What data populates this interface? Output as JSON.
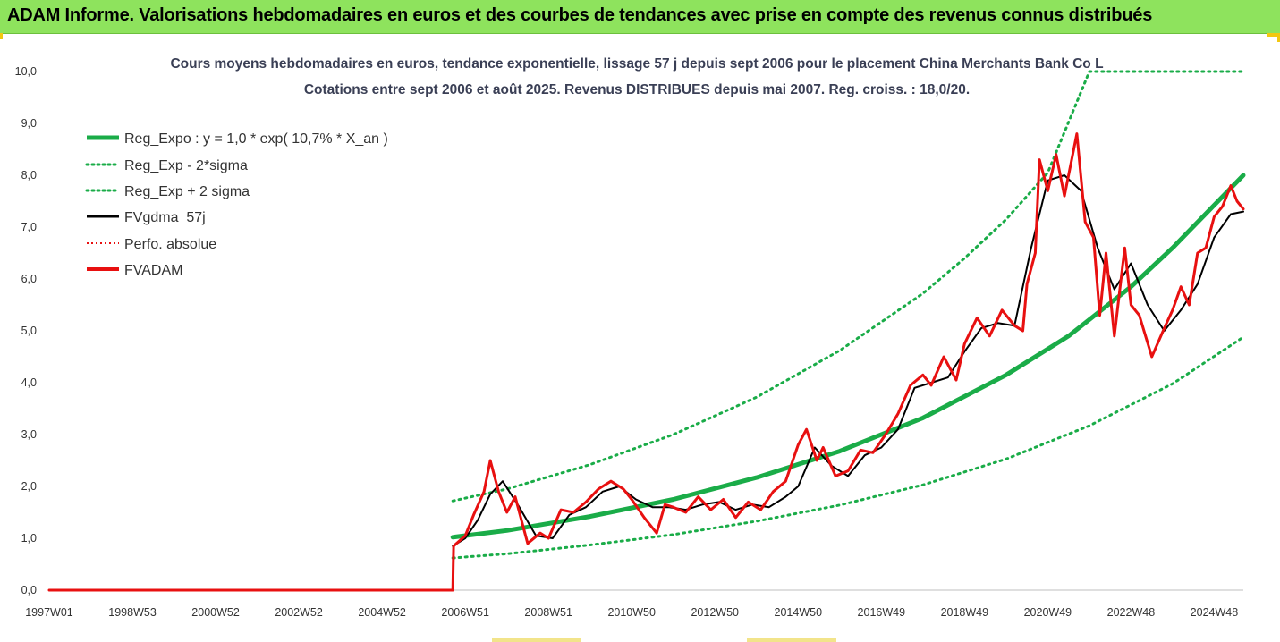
{
  "banner": {
    "title": "ADAM Informe. Valorisations hebdomadaires en euros et des courbes de tendances avec prise en compte des revenus connus distribués"
  },
  "colors": {
    "banner_bg": "#8ee35d",
    "reg_expo": "#1aac48",
    "reg_band": "#1aac48",
    "fvgdma": "#000000",
    "perfo": "#e81010",
    "fvadam": "#e81010",
    "axis": "#bfbfbf",
    "corner_accent": "#f2c811"
  },
  "chart_data": {
    "type": "line",
    "title": "Cours moyens hebdomadaires en euros, tendance exponentielle, lissage 57 j depuis sept 2006 pour le placement China Merchants Bank Co L",
    "subtitle": "Cotations entre sept 2006 et août 2025. Revenus DISTRIBUES depuis mai 2007. Reg. croiss. : 18,0/20.",
    "xlabel": "",
    "ylabel": "",
    "x_range": [
      1997.0,
      2025.7
    ],
    "ylim": [
      0,
      10
    ],
    "y_ticks": [
      "0,0",
      "1,0",
      "2,0",
      "3,0",
      "4,0",
      "5,0",
      "6,0",
      "7,0",
      "8,0",
      "9,0",
      "10,0"
    ],
    "x_ticks": [
      {
        "label": "1997W01",
        "x": 1997.0
      },
      {
        "label": "1998W53",
        "x": 1999.0
      },
      {
        "label": "2000W52",
        "x": 2001.0
      },
      {
        "label": "2002W52",
        "x": 2003.0
      },
      {
        "label": "2004W52",
        "x": 2005.0
      },
      {
        "label": "2006W51",
        "x": 2007.0
      },
      {
        "label": "2008W51",
        "x": 2009.0
      },
      {
        "label": "2010W50",
        "x": 2011.0
      },
      {
        "label": "2012W50",
        "x": 2013.0
      },
      {
        "label": "2014W50",
        "x": 2015.0
      },
      {
        "label": "2016W49",
        "x": 2017.0
      },
      {
        "label": "2018W49",
        "x": 2019.0
      },
      {
        "label": "2020W49",
        "x": 2021.0
      },
      {
        "label": "2022W48",
        "x": 2023.0
      },
      {
        "label": "2024W48",
        "x": 2025.0
      }
    ],
    "legend_position": "top-left",
    "grid": false,
    "series": [
      {
        "name": "Reg_Expo : y = 1,0 * exp( 10,7% *  X_an )",
        "style": "solid-thick",
        "x": [
          2006.7,
          2008.0,
          2010.0,
          2012.0,
          2014.0,
          2016.0,
          2018.0,
          2020.0,
          2021.5,
          2023.0,
          2024.0,
          2025.7
        ],
        "y": [
          1.02,
          1.15,
          1.42,
          1.75,
          2.17,
          2.68,
          3.32,
          4.15,
          4.9,
          5.85,
          6.6,
          8.0
        ]
      },
      {
        "name": "Reg_Exp - 2*sigma",
        "style": "dotted",
        "x": [
          2006.7,
          2008.0,
          2010.0,
          2012.0,
          2014.0,
          2016.0,
          2018.0,
          2020.0,
          2022.0,
          2024.0,
          2025.7
        ],
        "y": [
          0.62,
          0.7,
          0.87,
          1.07,
          1.33,
          1.64,
          2.03,
          2.53,
          3.17,
          3.98,
          4.88
        ]
      },
      {
        "name": "Reg_Exp + 2 sigma",
        "style": "dotted",
        "x": [
          2006.7,
          2008.0,
          2010.0,
          2012.0,
          2014.0,
          2016.0,
          2018.0,
          2019.0,
          2020.0,
          2021.0,
          2022.0,
          2025.7
        ],
        "y": [
          1.72,
          1.95,
          2.42,
          3.0,
          3.72,
          4.62,
          5.72,
          6.4,
          7.15,
          8.05,
          10.0,
          10.0
        ]
      },
      {
        "name": "FVgdma_57j",
        "style": "solid-black",
        "x": [
          2006.7,
          2007.0,
          2007.3,
          2007.6,
          2007.9,
          2008.3,
          2008.7,
          2009.1,
          2009.5,
          2009.9,
          2010.3,
          2010.7,
          2011.1,
          2011.5,
          2011.9,
          2012.3,
          2012.7,
          2013.1,
          2013.5,
          2013.9,
          2014.3,
          2014.7,
          2015.0,
          2015.4,
          2015.8,
          2016.2,
          2016.6,
          2017.0,
          2017.4,
          2017.8,
          2018.2,
          2018.6,
          2019.0,
          2019.4,
          2019.8,
          2020.2,
          2020.6,
          2021.0,
          2021.4,
          2021.8,
          2022.2,
          2022.6,
          2023.0,
          2023.4,
          2023.8,
          2024.2,
          2024.6,
          2025.0,
          2025.4,
          2025.7
        ],
        "y": [
          0.85,
          1.0,
          1.35,
          1.85,
          2.1,
          1.6,
          1.05,
          1.0,
          1.45,
          1.6,
          1.9,
          2.0,
          1.75,
          1.6,
          1.6,
          1.55,
          1.65,
          1.7,
          1.55,
          1.65,
          1.6,
          1.8,
          2.0,
          2.75,
          2.4,
          2.2,
          2.6,
          2.75,
          3.1,
          3.9,
          4.0,
          4.1,
          4.6,
          5.05,
          5.15,
          5.1,
          6.6,
          7.9,
          8.0,
          7.7,
          6.6,
          5.8,
          6.3,
          5.5,
          5.0,
          5.4,
          5.9,
          6.8,
          7.25,
          7.3
        ]
      },
      {
        "name": "Perfo. absolue",
        "style": "dotted-red",
        "x": [
          1997.0,
          2006.7
        ],
        "y": [
          0.0,
          0.0
        ]
      },
      {
        "name": "FVADAM",
        "style": "solid-red",
        "x": [
          1997.0,
          2006.7,
          2006.72,
          2007.0,
          2007.2,
          2007.45,
          2007.6,
          2007.8,
          2008.0,
          2008.2,
          2008.5,
          2008.8,
          2009.0,
          2009.3,
          2009.6,
          2009.9,
          2010.2,
          2010.5,
          2010.8,
          2011.0,
          2011.3,
          2011.6,
          2011.8,
          2012.0,
          2012.3,
          2012.6,
          2012.9,
          2013.2,
          2013.5,
          2013.8,
          2014.1,
          2014.4,
          2014.7,
          2015.0,
          2015.2,
          2015.45,
          2015.6,
          2015.9,
          2016.2,
          2016.5,
          2016.8,
          2017.1,
          2017.4,
          2017.7,
          2018.0,
          2018.2,
          2018.5,
          2018.8,
          2019.0,
          2019.3,
          2019.6,
          2019.9,
          2020.2,
          2020.4,
          2020.5,
          2020.7,
          2020.8,
          2021.0,
          2021.2,
          2021.4,
          2021.7,
          2021.9,
          2022.1,
          2022.25,
          2022.4,
          2022.6,
          2022.85,
          2023.0,
          2023.2,
          2023.5,
          2023.8,
          2024.0,
          2024.2,
          2024.4,
          2024.6,
          2024.8,
          2025.0,
          2025.2,
          2025.4,
          2025.55,
          2025.7
        ],
        "y": [
          0.0,
          0.0,
          0.85,
          1.05,
          1.45,
          1.9,
          2.5,
          1.9,
          1.5,
          1.8,
          0.9,
          1.1,
          1.0,
          1.55,
          1.5,
          1.7,
          1.95,
          2.1,
          1.95,
          1.75,
          1.4,
          1.1,
          1.65,
          1.6,
          1.5,
          1.8,
          1.55,
          1.75,
          1.4,
          1.7,
          1.55,
          1.9,
          2.1,
          2.8,
          3.1,
          2.5,
          2.75,
          2.2,
          2.3,
          2.7,
          2.65,
          3.0,
          3.4,
          3.95,
          4.15,
          3.95,
          4.5,
          4.05,
          4.75,
          5.25,
          4.9,
          5.4,
          5.1,
          5.0,
          5.9,
          6.5,
          8.3,
          7.7,
          8.4,
          7.6,
          8.8,
          7.1,
          6.8,
          5.3,
          6.5,
          4.9,
          6.6,
          5.5,
          5.3,
          4.5,
          5.05,
          5.4,
          5.85,
          5.5,
          6.5,
          6.6,
          7.2,
          7.4,
          7.8,
          7.5,
          7.35
        ]
      }
    ]
  }
}
